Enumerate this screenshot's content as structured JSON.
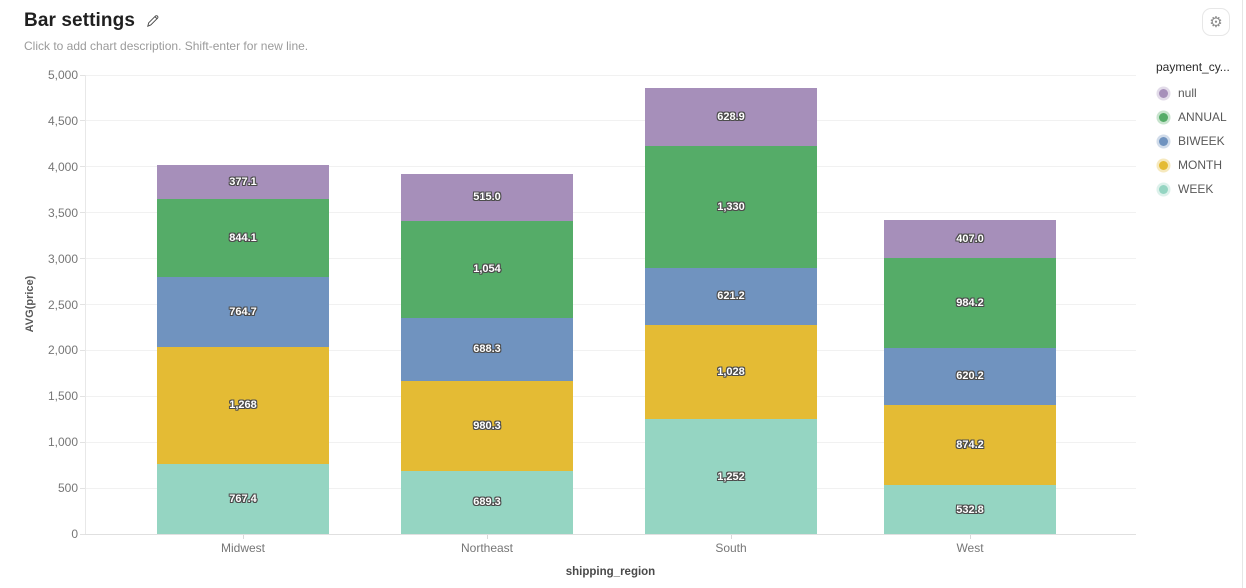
{
  "header": {
    "title": "Bar settings",
    "subtitle": "Click to add chart description. Shift-enter for new line."
  },
  "chart_data": {
    "type": "bar",
    "stacked": true,
    "xlabel": "shipping_region",
    "ylabel": "AVG(price)",
    "ylim": [
      0,
      5000
    ],
    "ytick_step": 500,
    "ytick_labels": [
      "0",
      "500",
      "1,000",
      "1,500",
      "2,000",
      "2,500",
      "3,000",
      "3,500",
      "4,000",
      "4,500",
      "5,000"
    ],
    "grid": true,
    "categories": [
      "Midwest",
      "Northeast",
      "South",
      "West"
    ],
    "series": [
      {
        "name": "WEEK",
        "color": "#95d5c2",
        "values": [
          767.4,
          689.3,
          1252,
          532.8
        ],
        "labels": [
          "767.4",
          "689.3",
          "1,252",
          "532.8"
        ]
      },
      {
        "name": "MONTH",
        "color": "#e4bb34",
        "values": [
          1268,
          980.3,
          1028,
          874.2
        ],
        "labels": [
          "1,268",
          "980.3",
          "1,028",
          "874.2"
        ]
      },
      {
        "name": "BIWEEK",
        "color": "#7093bf",
        "values": [
          764.7,
          688.3,
          621.2,
          620.2
        ],
        "labels": [
          "764.7",
          "688.3",
          "621.2",
          "620.2"
        ]
      },
      {
        "name": "ANNUAL",
        "color": "#55ac68",
        "values": [
          844.1,
          1054,
          1330,
          984.2
        ],
        "labels": [
          "844.1",
          "1,054",
          "1,330",
          "984.2"
        ]
      },
      {
        "name": "null",
        "color": "#a68fba",
        "values": [
          377.1,
          515.0,
          628.9,
          407.0
        ],
        "labels": [
          "377.1",
          "515.0",
          "628.9",
          "407.0"
        ]
      }
    ],
    "legend": {
      "title": "payment_cy...",
      "position": "right",
      "items": [
        "null",
        "ANNUAL",
        "BIWEEK",
        "MONTH",
        "WEEK"
      ]
    }
  },
  "icons": {
    "edit": "pencil-icon",
    "settings": "gear-icon",
    "gear_glyph": "⚙"
  }
}
